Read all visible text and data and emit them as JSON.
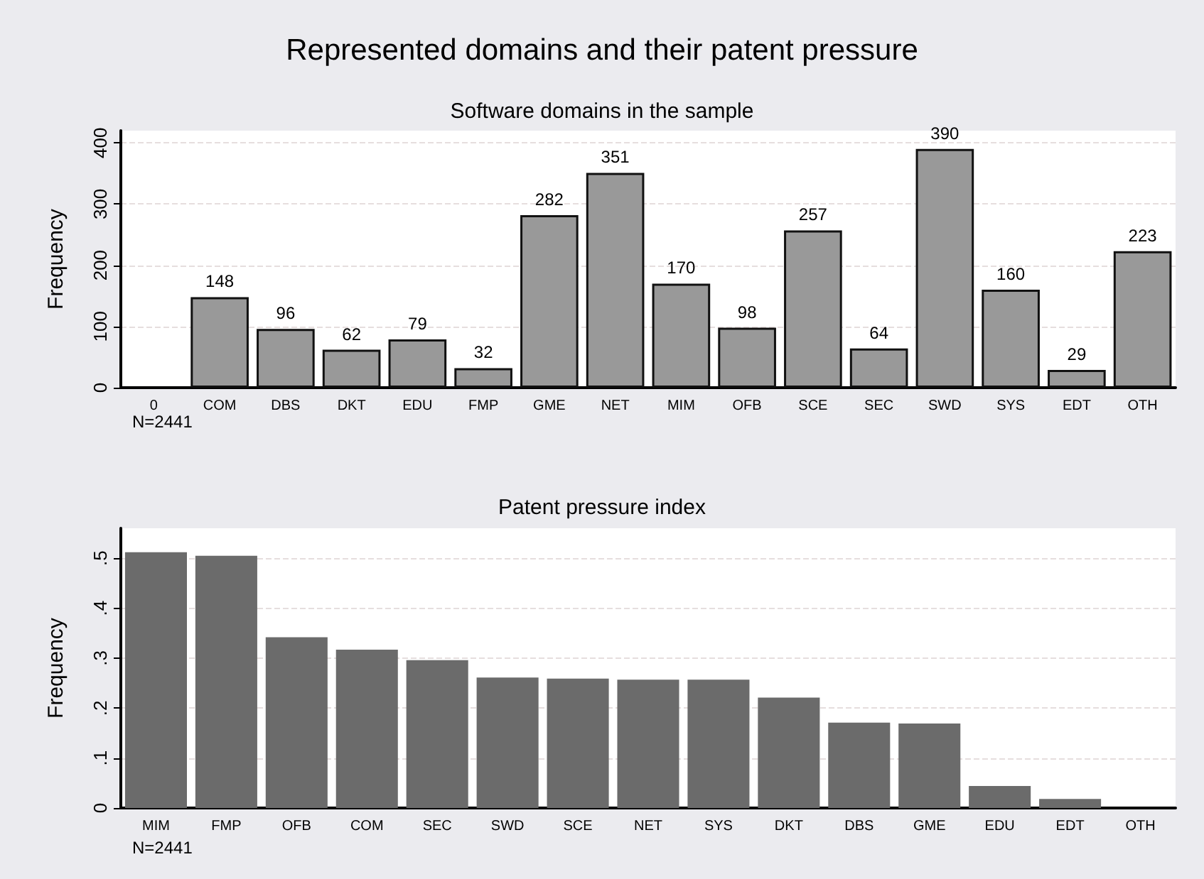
{
  "chart_data": [
    {
      "type": "bar",
      "title": "Represented domains and their patent pressure",
      "subtitle": "Software domains in the sample",
      "ylabel": "Frequency",
      "annotations": [
        "N=2441"
      ],
      "categories": [
        "0",
        "COM",
        "DBS",
        "DKT",
        "EDU",
        "FMP",
        "GME",
        "NET",
        "MIM",
        "OFB",
        "SCE",
        "SEC",
        "SWD",
        "SYS",
        "EDT",
        "OTH"
      ],
      "values": [
        null,
        148,
        96,
        62,
        79,
        32,
        282,
        351,
        170,
        98,
        257,
        64,
        390,
        160,
        29,
        223
      ],
      "color": "#999999",
      "data_labels": true,
      "ylim": [
        0,
        420
      ],
      "yticks": [
        0,
        100,
        200,
        300,
        400
      ],
      "grid": "y"
    },
    {
      "type": "bar",
      "title": "Patent pressure index",
      "ylabel": "Frequency",
      "annotations": [
        "N=2441"
      ],
      "categories": [
        "MIM",
        "FMP",
        "OFB",
        "COM",
        "SEC",
        "SWD",
        "SCE",
        "NET",
        "SYS",
        "DKT",
        "DBS",
        "GME",
        "EDU",
        "EDT",
        "OTH"
      ],
      "values": [
        0.512,
        0.505,
        0.342,
        0.317,
        0.296,
        0.261,
        0.259,
        0.257,
        0.257,
        0.221,
        0.171,
        0.169,
        0.044,
        0.018,
        0
      ],
      "color": "#6b6b6b",
      "ylim": [
        0,
        0.56
      ],
      "yticks": [
        0,
        {
          "value": 0.1,
          "label": ".1"
        },
        {
          "value": 0.2,
          "label": ".2"
        },
        {
          "value": 0.3,
          "label": ".3"
        },
        {
          "value": 0.4,
          "label": ".4"
        },
        {
          "value": 0.5,
          "label": ".5"
        }
      ],
      "grid": "y"
    }
  ]
}
